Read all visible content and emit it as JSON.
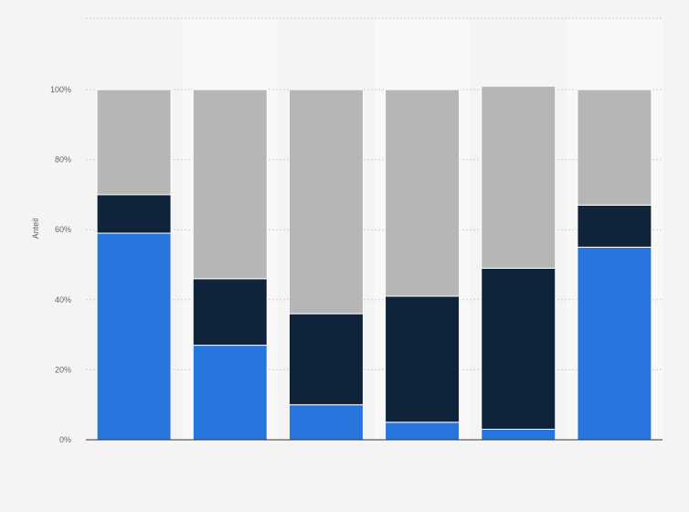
{
  "chart_data": {
    "type": "bar",
    "stacked": true,
    "categories": [
      "",
      "",
      "",
      "",
      "",
      ""
    ],
    "series": [
      {
        "values": [
          59,
          27,
          10,
          5,
          3,
          55
        ]
      },
      {
        "values": [
          11,
          19,
          26,
          36,
          46,
          12
        ]
      },
      {
        "values": [
          30,
          54,
          64,
          59,
          52,
          33
        ]
      }
    ],
    "ylabel": "Anteil",
    "ylim": [
      0,
      100
    ],
    "yticks": [
      "0%",
      "20%",
      "40%",
      "60%",
      "80%",
      "100%"
    ],
    "grid": true,
    "legend": "none",
    "colors": [
      "#2876dd",
      "#0f243a",
      "#b6b6b6"
    ],
    "background_bands": [
      "#f4f4f4",
      "#f8f8f8"
    ]
  }
}
